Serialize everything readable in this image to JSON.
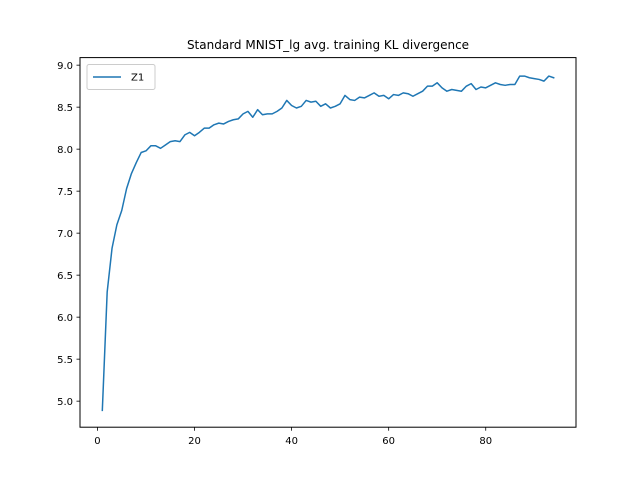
{
  "chart_data": {
    "type": "line",
    "title": "Standard MNIST_lg avg. training KL divergence",
    "xlabel": "",
    "ylabel": "",
    "xlim": [
      -3.6,
      98.6
    ],
    "ylim": [
      4.69,
      9.09
    ],
    "xticks": [
      0,
      20,
      40,
      60,
      80
    ],
    "yticks": [
      5.0,
      5.5,
      6.0,
      6.5,
      7.0,
      7.5,
      8.0,
      8.5,
      9.0
    ],
    "xtick_labels": [
      "0",
      "20",
      "40",
      "60",
      "80"
    ],
    "ytick_labels": [
      "5.0",
      "5.5",
      "6.0",
      "6.5",
      "7.0",
      "7.5",
      "8.0",
      "8.5",
      "9.0"
    ],
    "legend_position": "top-left",
    "grid": false,
    "series": [
      {
        "name": "Z1",
        "color": "#1f77b4",
        "x": [
          1,
          2,
          3,
          4,
          5,
          6,
          7,
          8,
          9,
          10,
          11,
          12,
          13,
          14,
          15,
          16,
          17,
          18,
          19,
          20,
          21,
          22,
          23,
          24,
          25,
          26,
          27,
          28,
          29,
          30,
          31,
          32,
          33,
          34,
          35,
          36,
          37,
          38,
          39,
          40,
          41,
          42,
          43,
          44,
          45,
          46,
          47,
          48,
          49,
          50,
          51,
          52,
          53,
          54,
          55,
          56,
          57,
          58,
          59,
          60,
          61,
          62,
          63,
          64,
          65,
          66,
          67,
          68,
          69,
          70,
          71,
          72,
          73,
          74,
          75,
          76,
          77,
          78,
          79,
          80,
          81,
          82,
          83,
          84,
          85,
          86,
          87,
          88,
          89,
          90,
          91,
          92,
          93,
          94
        ],
        "y": [
          4.89,
          6.3,
          6.82,
          7.1,
          7.27,
          7.53,
          7.71,
          7.84,
          7.96,
          7.98,
          8.04,
          8.04,
          8.01,
          8.05,
          8.09,
          8.1,
          8.09,
          8.17,
          8.2,
          8.16,
          8.2,
          8.25,
          8.25,
          8.29,
          8.31,
          8.3,
          8.33,
          8.35,
          8.36,
          8.42,
          8.45,
          8.38,
          8.47,
          8.41,
          8.42,
          8.42,
          8.45,
          8.49,
          8.58,
          8.52,
          8.49,
          8.51,
          8.58,
          8.56,
          8.57,
          8.51,
          8.54,
          8.49,
          8.51,
          8.54,
          8.64,
          8.59,
          8.58,
          8.62,
          8.61,
          8.64,
          8.67,
          8.63,
          8.64,
          8.6,
          8.65,
          8.64,
          8.67,
          8.66,
          8.63,
          8.66,
          8.69,
          8.75,
          8.75,
          8.79,
          8.73,
          8.69,
          8.71,
          8.7,
          8.69,
          8.75,
          8.78,
          8.71,
          8.74,
          8.73,
          8.76,
          8.79,
          8.77,
          8.76,
          8.77,
          8.77,
          8.87,
          8.87,
          8.85,
          8.84,
          8.83,
          8.81,
          8.87,
          8.85
        ]
      }
    ]
  }
}
